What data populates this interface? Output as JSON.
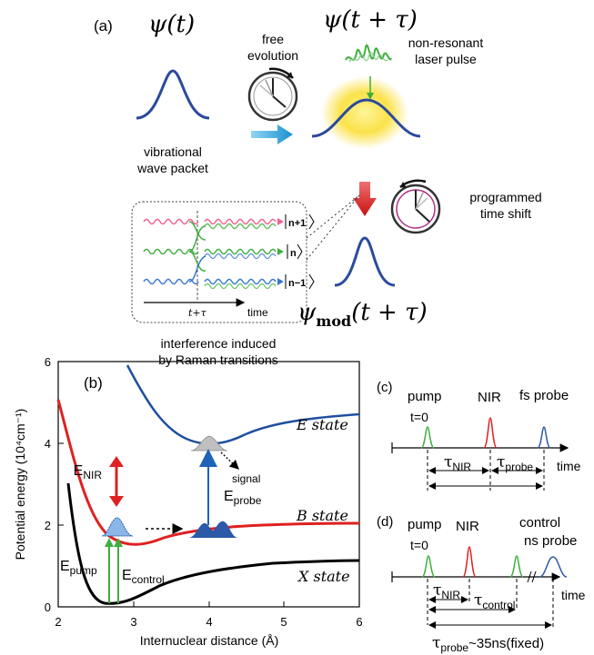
{
  "panel_a": {
    "label": "(a)",
    "psi_t": "ψ(t)",
    "psi_t_tau": "ψ(t + τ)",
    "psi_mod": "ψ",
    "psi_mod_sub": "mod",
    "psi_mod_arg": "(t + τ)",
    "free_line1": "free",
    "free_line2": "evolution",
    "laser_line1": "non-resonant",
    "laser_line2": "laser pulse",
    "vib_line1": "vibrational",
    "vib_line2": "wave packet",
    "prog_line1": "programmed",
    "prog_line2": "time shift",
    "inset_levels": [
      "n+1",
      "n",
      "n−1"
    ],
    "inset_ttau": "t+τ",
    "inset_time": "time",
    "interf_line1": "interference induced",
    "interf_line2": "by Raman transitions"
  },
  "panel_b": {
    "label": "(b)",
    "ylabel": "Potential energy",
    "ylabel_unit": "(10⁴cm⁻¹)",
    "xlabel": "Internuclear distance (Å)",
    "xticks": [
      "2",
      "3",
      "4",
      "5",
      "6"
    ],
    "yticks": [
      "0",
      "2",
      "4",
      "6"
    ],
    "e_state": "E state",
    "b_state": "B state",
    "x_state": "X state",
    "e_nir": "E",
    "e_nir_sub": "NIR",
    "e_probe": "E",
    "e_probe_sub": "probe",
    "e_pump": "E",
    "e_pump_sub": "pump",
    "e_control": "E",
    "e_control_sub": "control",
    "signal": "signal"
  },
  "panel_c": {
    "label": "(c)",
    "pump": "pump",
    "t0": "t=0",
    "nir": "NIR",
    "probe": "fs probe",
    "tau": "τ",
    "tau_nir_sub": "NIR",
    "tau_probe_sub": "probe",
    "time": "time"
  },
  "panel_d": {
    "label": "(d)",
    "pump": "pump",
    "t0": "t=0",
    "nir": "NIR",
    "control": "control",
    "probe": "ns probe",
    "tau": "τ",
    "tau_nir_sub": "NIR",
    "tau_control_sub": "control",
    "tau_probe_sub": "probe",
    "tau_probe_val": "~35ns(fixed)",
    "time": "time"
  },
  "colors": {
    "wavepacket": "#2b4a9c",
    "pump": "#2ca02c",
    "nir": "#e02020",
    "probe": "#2b5aa8",
    "x_curve": "#000000",
    "b_curve": "#e02020",
    "e_curve": "#1f4fa0",
    "arrow_cyan": "#1aa3e0",
    "arrow_red": "#e02020"
  }
}
